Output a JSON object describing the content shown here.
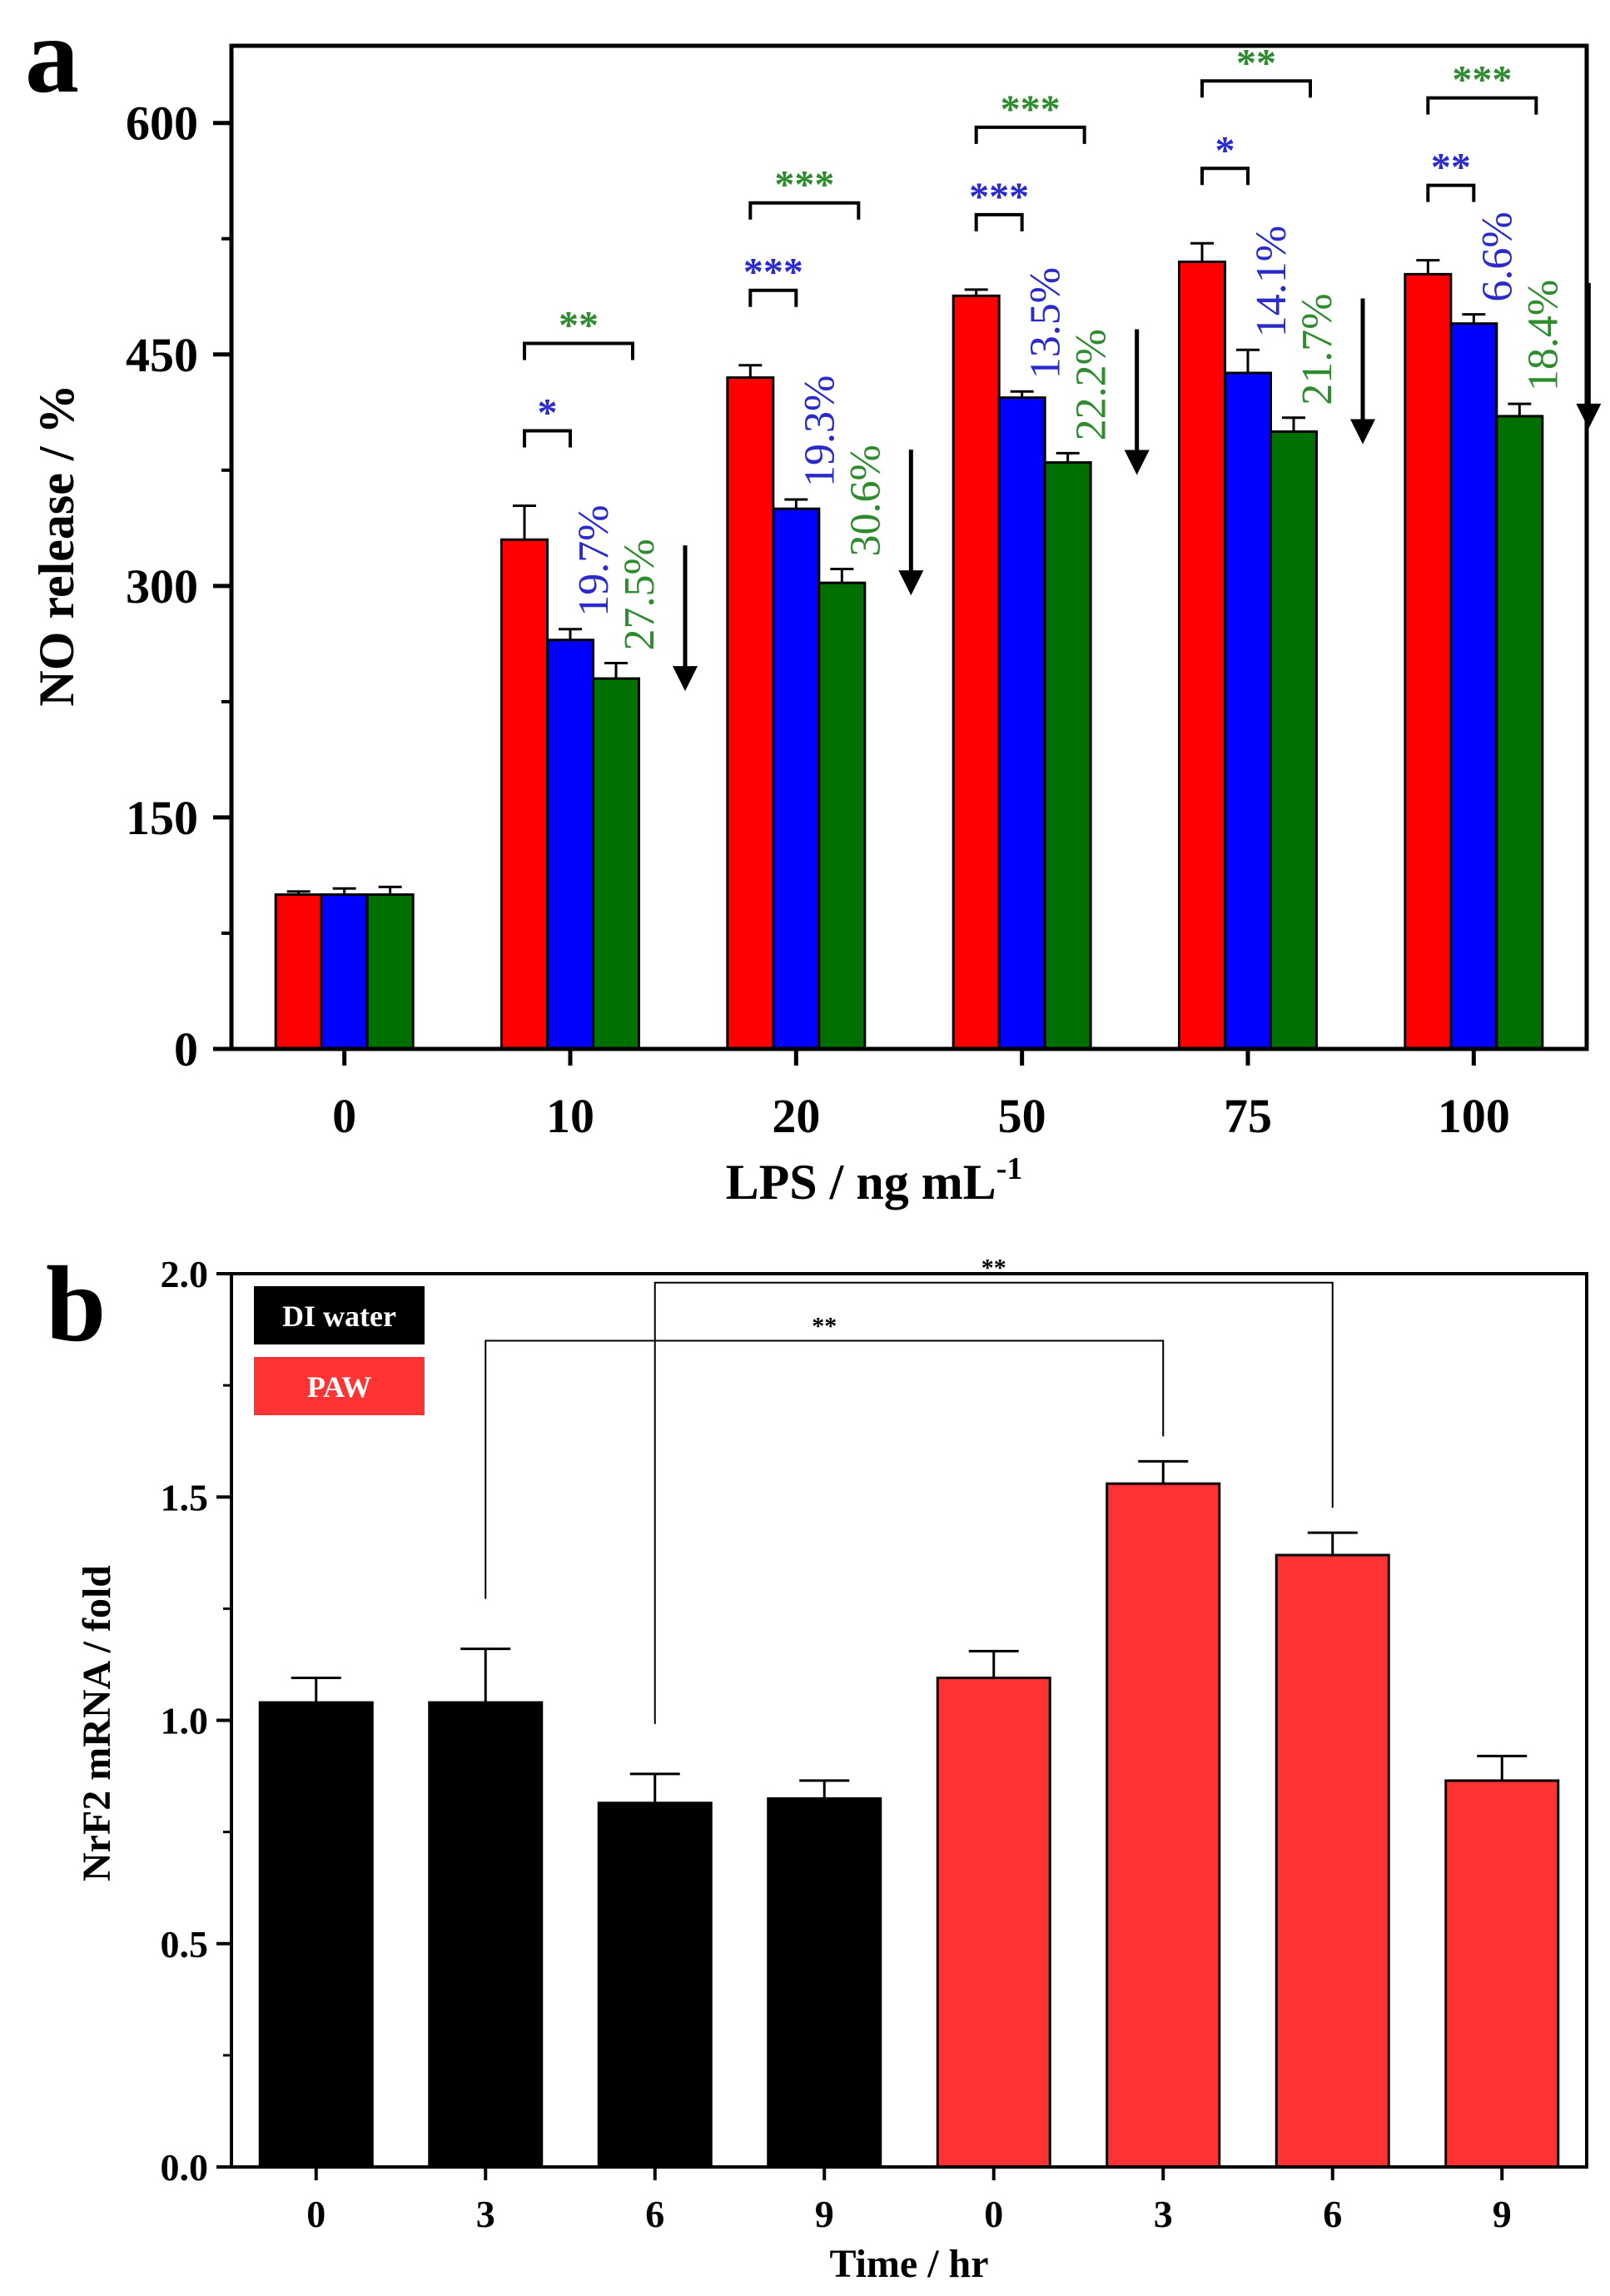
{
  "figure": {
    "panel_a_label": "a",
    "panel_b_label": "b"
  },
  "chart_data": [
    {
      "type": "bar",
      "panel": "a",
      "title": "",
      "xlabel": "LPS / ng mL",
      "xlabel_superscript": "-1",
      "ylabel": "NO release / %",
      "ylim": [
        0,
        650
      ],
      "yticks": [
        "0",
        "150",
        "300",
        "450",
        "600"
      ],
      "grid": false,
      "categories": [
        "0",
        "10",
        "20",
        "50",
        "75",
        "100"
      ],
      "series": [
        {
          "name": "red",
          "color": "#ff0000",
          "values": [
            100,
            330,
            435,
            488,
            510,
            502
          ],
          "errors": [
            2,
            22,
            8,
            4,
            12,
            9
          ]
        },
        {
          "name": "blue",
          "color": "#0000ff",
          "values": [
            100,
            265,
            350,
            422,
            438,
            470
          ],
          "errors": [
            4,
            7,
            6,
            4,
            15,
            6
          ]
        },
        {
          "name": "green",
          "color": "#007000",
          "values": [
            100,
            240,
            302,
            380,
            400,
            410
          ],
          "errors": [
            5,
            10,
            9,
            6,
            9,
            8
          ]
        }
      ],
      "reduction_labels": {
        "blue": [
          "",
          "19.7%",
          "19.3%",
          "13.5%",
          "14.1%",
          "6.6%"
        ],
        "green": [
          "",
          "27.5%",
          "30.6%",
          "22.2%",
          "21.7%",
          "18.4%"
        ],
        "blue_color": "#2b2bcc",
        "green_color": "#2e8b2e"
      },
      "significance": {
        "blue": [
          "",
          "*",
          "***",
          "***",
          "*",
          "**"
        ],
        "green": [
          "",
          "**",
          "***",
          "***",
          "**",
          "***"
        ]
      }
    },
    {
      "type": "bar",
      "panel": "b",
      "title": "",
      "xlabel": "Time / hr",
      "ylabel": "NrF2 mRNA / fold",
      "ylim": [
        0,
        2.0
      ],
      "yticks": [
        "0.0",
        "0.5",
        "1.0",
        "1.5",
        "2.0"
      ],
      "grid": false,
      "categories": [
        "0",
        "3",
        "6",
        "9",
        "0",
        "3",
        "6",
        "9"
      ],
      "values": [
        1.04,
        1.04,
        0.815,
        0.825,
        1.095,
        1.53,
        1.37,
        0.865
      ],
      "errors": [
        0.055,
        0.12,
        0.065,
        0.04,
        0.06,
        0.05,
        0.05,
        0.055
      ],
      "groups": [
        "DI water",
        "DI water",
        "DI water",
        "DI water",
        "PAW",
        "PAW",
        "PAW",
        "PAW"
      ],
      "legend": [
        {
          "label": "DI water",
          "color": "#000000"
        },
        {
          "label": "PAW",
          "color": "#ff3333"
        }
      ],
      "legend_position": "top-left",
      "significance": [
        {
          "from_index": 1,
          "to_index": 5,
          "label": "**"
        },
        {
          "from_index": 2,
          "to_index": 6,
          "label": "**"
        }
      ]
    }
  ]
}
